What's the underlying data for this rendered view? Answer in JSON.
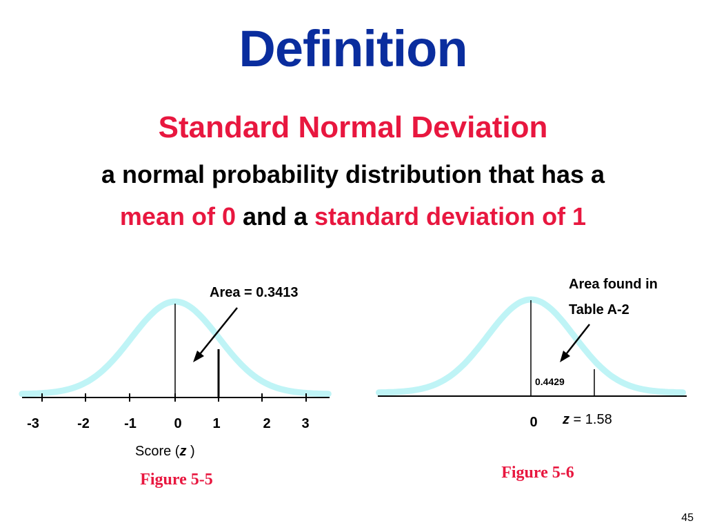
{
  "slide": {
    "title": "Definition",
    "subtitle": "Standard Normal Deviation",
    "line1": "a normal probability distribution that has a",
    "line2_part1": "mean of 0",
    "line2_part2": " and a ",
    "line2_part3": "standard deviation of 1",
    "page_number": "45"
  },
  "figure_left": {
    "tick_labels": [
      "-3",
      "-2",
      "-1",
      "0",
      "1",
      "2",
      "3"
    ],
    "area_label": "Area = 0.3413",
    "axis_label_prefix": "Score (",
    "axis_label_var": "z",
    "axis_label_suffix": " )",
    "caption": "Figure 5-5"
  },
  "figure_right": {
    "annotation_line1": "Area found in",
    "annotation_line2": "Table A-2",
    "area_value": "0.4429",
    "zero_label": "0",
    "z_var": "z",
    "z_eq": " = 1.58",
    "caption": "Figure 5-6"
  },
  "colors": {
    "title": "#0a2d9e",
    "accent": "#e8173f",
    "curve": "#bff4f6",
    "caption": "#e8173f"
  }
}
